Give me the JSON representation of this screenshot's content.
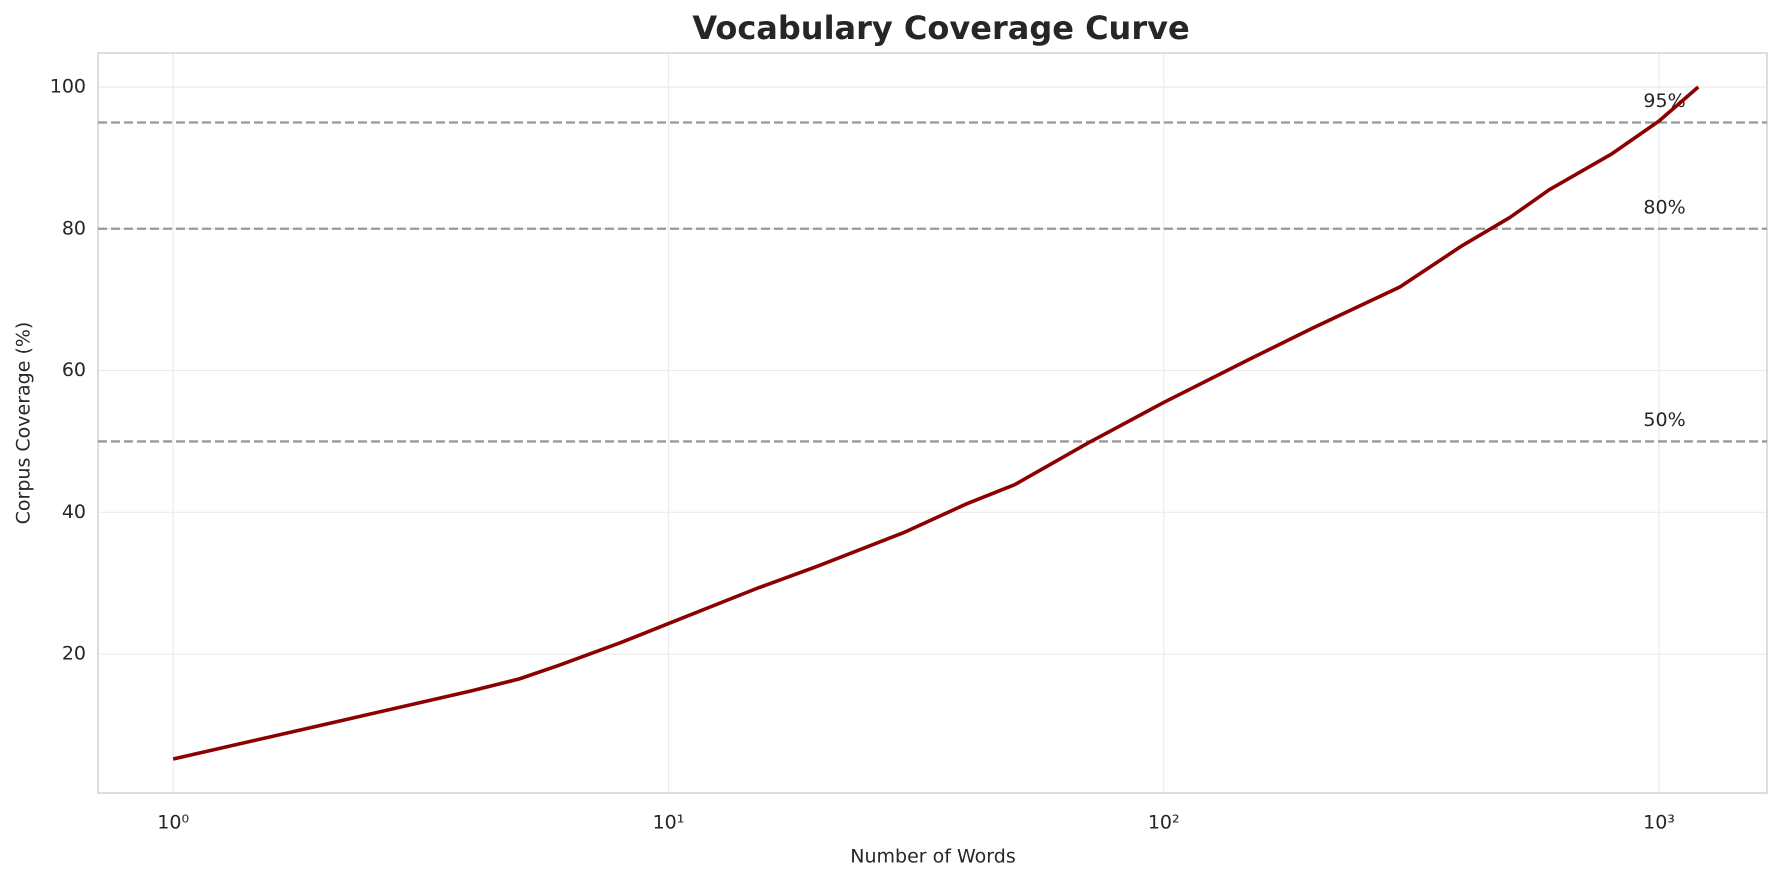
{
  "chart_data": {
    "type": "line",
    "title": "Vocabulary Coverage Curve",
    "xlabel": "Number of Words",
    "ylabel": "Corpus Coverage (%)",
    "x": [
      1,
      2,
      4,
      5,
      6,
      8,
      10,
      15,
      20,
      30,
      40,
      50,
      70,
      100,
      150,
      200,
      300,
      400,
      500,
      600,
      800,
      1000,
      1200
    ],
    "values": [
      5.2,
      10.0,
      14.8,
      16.5,
      18.4,
      21.6,
      24.3,
      29.2,
      32.4,
      37.2,
      41.2,
      43.9,
      49.7,
      55.5,
      61.7,
      66.0,
      71.8,
      77.6,
      81.6,
      85.5,
      90.5,
      95.2,
      100
    ],
    "color": "#8b0000",
    "xscale": "log",
    "xlim": [
      0.705,
      1652
    ],
    "xticks": [
      {
        "value": 1,
        "label": "10⁰"
      },
      {
        "value": 10,
        "label": "10¹"
      },
      {
        "value": 100,
        "label": "10²"
      },
      {
        "value": 1000,
        "label": "10³"
      }
    ],
    "ylim": [
      0.4,
      104.8
    ],
    "yticks": [
      20,
      40,
      60,
      80,
      100
    ],
    "grid": true,
    "reference_lines": [
      {
        "value": 95,
        "label": "95%"
      },
      {
        "value": 80,
        "label": "80%"
      },
      {
        "value": 50,
        "label": "50%"
      }
    ],
    "reference_label_x": 930
  }
}
